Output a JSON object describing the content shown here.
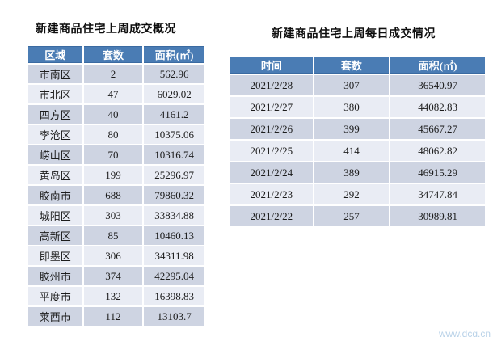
{
  "colors": {
    "header_bg": "#4a7cb4",
    "header_border": "#3a6aa1",
    "header_text": "#ffffff",
    "row_odd_bg": "#ced4e2",
    "row_even_bg": "#e9ecf4",
    "cell_text": "#1c1c1c",
    "title_text": "#0d0d0d",
    "watermark_text": "#b9d2e8",
    "page_bg": "#ffffff"
  },
  "watermark": "www.dcq.cn",
  "chart_data": [
    {
      "type": "table",
      "title": "新建商品住宅上周成交概况",
      "columns": [
        "区域",
        "套数",
        "面积(㎡)"
      ],
      "rows": [
        [
          "市南区",
          "2",
          "562.96"
        ],
        [
          "市北区",
          "47",
          "6029.02"
        ],
        [
          "四方区",
          "40",
          "4161.2"
        ],
        [
          "李沧区",
          "80",
          "10375.06"
        ],
        [
          "崂山区",
          "70",
          "10316.74"
        ],
        [
          "黄岛区",
          "199",
          "25296.97"
        ],
        [
          "胶南市",
          "688",
          "79860.32"
        ],
        [
          "城阳区",
          "303",
          "33834.88"
        ],
        [
          "高新区",
          "85",
          "10460.13"
        ],
        [
          "即墨区",
          "306",
          "34311.98"
        ],
        [
          "胶州市",
          "374",
          "42295.04"
        ],
        [
          "平度市",
          "132",
          "16398.83"
        ],
        [
          "莱西市",
          "112",
          "13103.7"
        ]
      ]
    },
    {
      "type": "table",
      "title": "新建商品住宅上周每日成交情况",
      "columns": [
        "时间",
        "套数",
        "面积(㎡)"
      ],
      "rows": [
        [
          "2021/2/28",
          "307",
          "36540.97"
        ],
        [
          "2021/2/27",
          "380",
          "44082.83"
        ],
        [
          "2021/2/26",
          "399",
          "45667.27"
        ],
        [
          "2021/2/25",
          "414",
          "48062.82"
        ],
        [
          "2021/2/24",
          "389",
          "46915.29"
        ],
        [
          "2021/2/23",
          "292",
          "34747.84"
        ],
        [
          "2021/2/22",
          "257",
          "30989.81"
        ]
      ]
    }
  ]
}
